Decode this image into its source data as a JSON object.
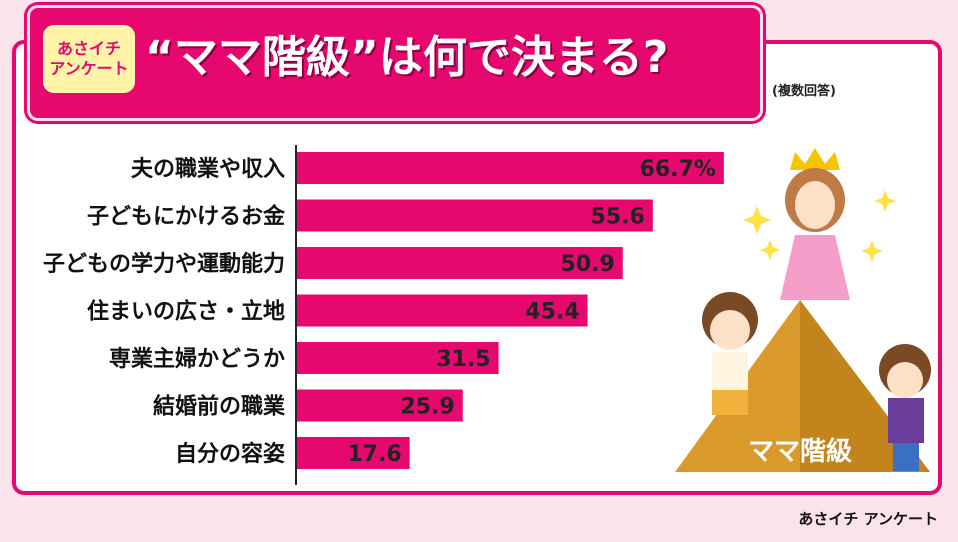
{
  "header": {
    "badge_line1": "あさイチ",
    "badge_line2": "アンケート",
    "title": "“ママ階級”は何で決まる?",
    "note": "(複数回答)"
  },
  "source": "あさイチ アンケート",
  "illustration": {
    "pyramid_label": "ママ階級"
  },
  "colors": {
    "bar": "#e6086f",
    "accent": "#e6086f",
    "badge_bg": "#fff4a8",
    "pyramid": "#d99a2b"
  },
  "chart_data": {
    "type": "bar",
    "orientation": "horizontal",
    "categories": [
      "夫の職業や収入",
      "子どもにかけるお金",
      "子どもの学力や運動能力",
      "住まいの広さ・立地",
      "専業主婦かどうか",
      "結婚前の職業",
      "自分の容姿"
    ],
    "values": [
      66.7,
      55.6,
      50.9,
      45.4,
      31.5,
      25.9,
      17.6
    ],
    "value_labels": [
      "66.7%",
      "55.6",
      "50.9",
      "45.4",
      "31.5",
      "25.9",
      "17.6"
    ],
    "xlim": [
      0,
      70
    ],
    "grid": false
  }
}
